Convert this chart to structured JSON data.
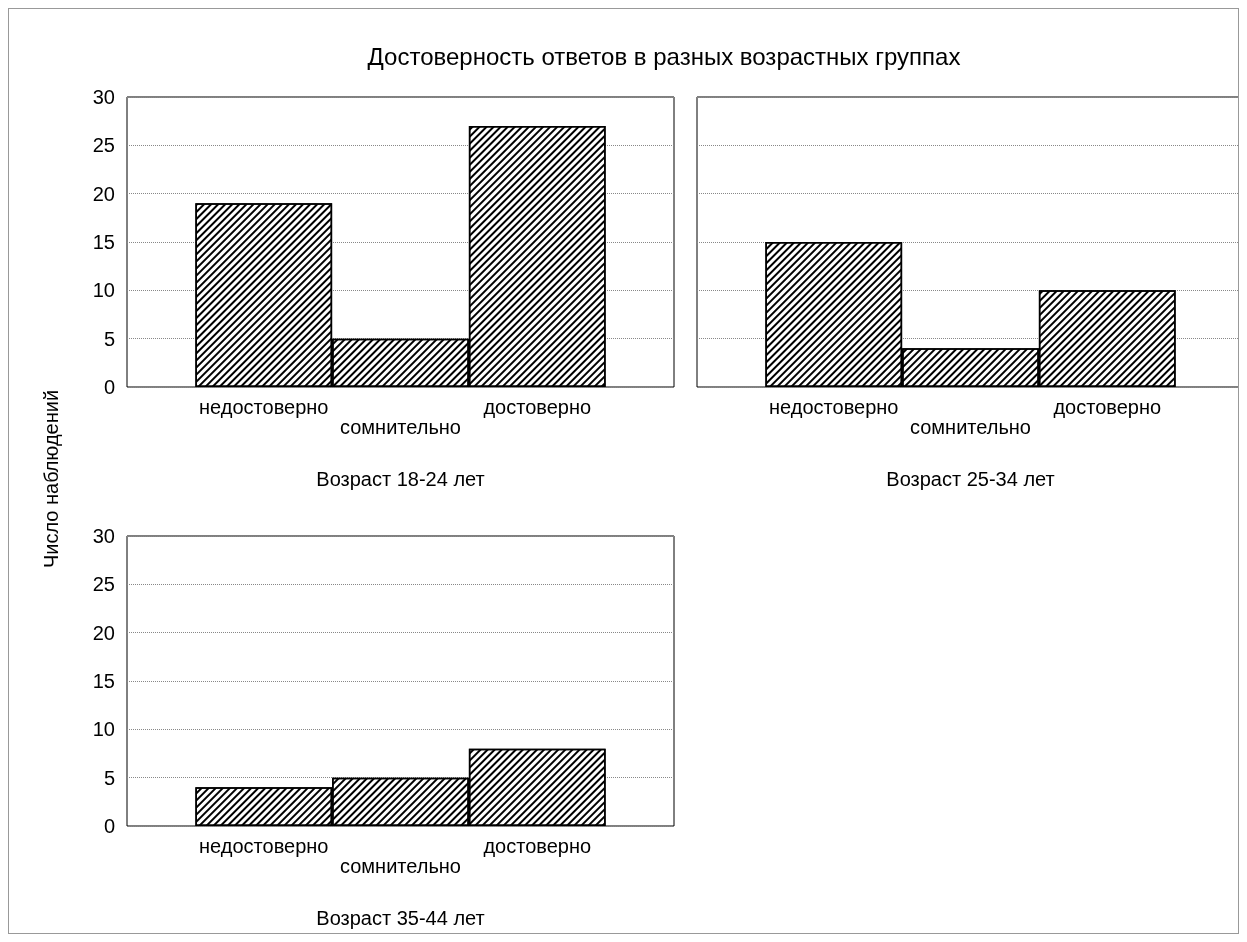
{
  "chart_data": [
    {
      "type": "bar",
      "title": "Достоверность ответов в разных возрастных группах",
      "ylabel": "Число наблюдений",
      "xlabel": "Возраст 18-24 лет",
      "categories": [
        "недостоверно",
        "сомнительно",
        "достоверно"
      ],
      "values": [
        19,
        5,
        27
      ],
      "color": "#000000",
      "ylim": [
        0,
        30
      ],
      "yticks": [
        0,
        5,
        10,
        15,
        20,
        25,
        30
      ],
      "grid": "y"
    },
    {
      "type": "bar",
      "xlabel": "Возраст 25-34 лет",
      "categories": [
        "недостоверно",
        "сомнительно",
        "достоверно"
      ],
      "values": [
        15,
        4,
        10
      ],
      "color": "#000000",
      "ylim": [
        0,
        30
      ],
      "yticks": [
        0,
        5,
        10,
        15,
        20,
        25,
        30
      ],
      "grid": "y",
      "tick_labels": "x"
    },
    {
      "type": "bar",
      "xlabel": "Возраст 35-44 лет",
      "categories": [
        "недостоверно",
        "сомнительно",
        "достоверно"
      ],
      "values": [
        4,
        5,
        8
      ],
      "color": "#000000",
      "ylim": [
        0,
        30
      ],
      "yticks": [
        0,
        5,
        10,
        15,
        20,
        25,
        30
      ],
      "grid": "y"
    }
  ]
}
